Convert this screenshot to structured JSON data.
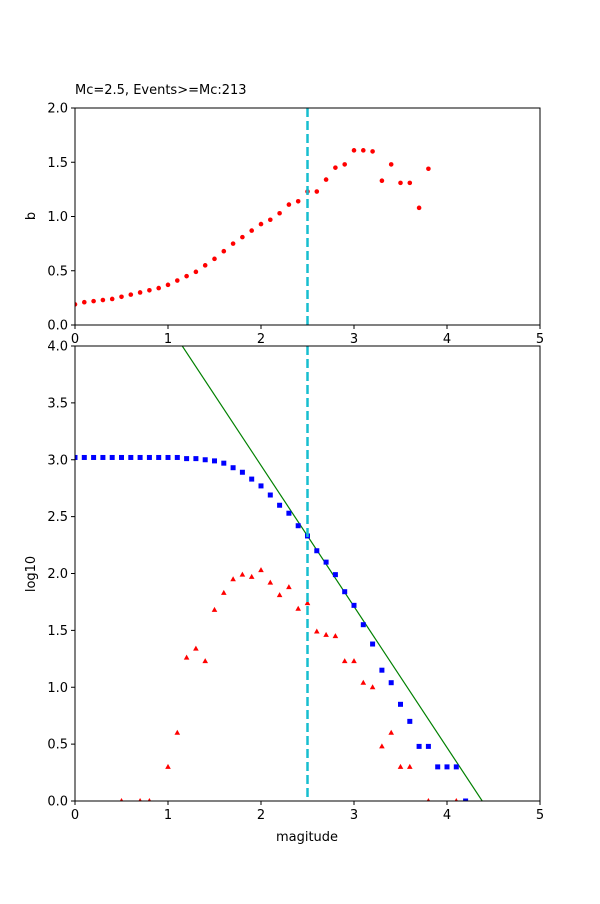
{
  "chart_data": [
    {
      "type": "scatter",
      "title": "Mc=2.5, Events>=Mc:213",
      "xlabel": "",
      "ylabel": "b",
      "xlim": [
        0,
        5
      ],
      "ylim": [
        0,
        2.0
      ],
      "xticks": [
        "0",
        "1",
        "2",
        "3",
        "4",
        "5"
      ],
      "yticks": [
        "0.0",
        "0.5",
        "1.0",
        "1.5",
        "2.0"
      ],
      "grid": false,
      "mc_line": {
        "x": 2.5,
        "color": "#17becf",
        "style": "dashed"
      },
      "series": [
        {
          "marker": "circle",
          "color": "#ff0000",
          "x": [
            0,
            0.1,
            0.2,
            0.3,
            0.4,
            0.5,
            0.6,
            0.7,
            0.8,
            0.9,
            1.0,
            1.1,
            1.2,
            1.3,
            1.4,
            1.5,
            1.6,
            1.7,
            1.8,
            1.9,
            2.0,
            2.1,
            2.2,
            2.3,
            2.4,
            2.5,
            2.6,
            2.7,
            2.8,
            2.9,
            3.0,
            3.1,
            3.2,
            3.3,
            3.4,
            3.5,
            3.6,
            3.7,
            3.8
          ],
          "y": [
            0.19,
            0.21,
            0.22,
            0.23,
            0.24,
            0.26,
            0.28,
            0.3,
            0.32,
            0.34,
            0.37,
            0.41,
            0.45,
            0.49,
            0.55,
            0.61,
            0.68,
            0.75,
            0.81,
            0.87,
            0.93,
            0.97,
            1.03,
            1.11,
            1.14,
            1.23,
            1.23,
            1.34,
            1.45,
            1.48,
            1.61,
            1.61,
            1.6,
            1.33,
            1.48,
            1.31,
            1.31,
            1.08,
            1.44
          ]
        }
      ]
    },
    {
      "type": "scatter",
      "title": "",
      "xlabel": "magitude",
      "ylabel": "log10",
      "xlim": [
        0,
        5
      ],
      "ylim": [
        0,
        4.0
      ],
      "xticks": [
        "0",
        "1",
        "2",
        "3",
        "4",
        "5"
      ],
      "yticks": [
        "0.0",
        "0.5",
        "1.0",
        "1.5",
        "2.0",
        "2.5",
        "3.0",
        "3.5",
        "4.0"
      ],
      "grid": false,
      "mc_line": {
        "x": 2.5,
        "color": "#17becf",
        "style": "dashed"
      },
      "fit_line": {
        "intercept": 5.43,
        "slope": -1.24,
        "color": "#008000"
      },
      "series": [
        {
          "marker": "square",
          "color": "#0000ff",
          "x": [
            0,
            0.1,
            0.2,
            0.3,
            0.4,
            0.5,
            0.6,
            0.7,
            0.8,
            0.9,
            1.0,
            1.1,
            1.2,
            1.3,
            1.4,
            1.5,
            1.6,
            1.7,
            1.8,
            1.9,
            2.0,
            2.1,
            2.2,
            2.3,
            2.4,
            2.5,
            2.6,
            2.7,
            2.8,
            2.9,
            3.0,
            3.1,
            3.2,
            3.3,
            3.4,
            3.5,
            3.6,
            3.7,
            3.8,
            3.9,
            4.0,
            4.1,
            4.2
          ],
          "y": [
            3.02,
            3.02,
            3.02,
            3.02,
            3.02,
            3.02,
            3.02,
            3.02,
            3.02,
            3.02,
            3.02,
            3.02,
            3.01,
            3.01,
            3.0,
            2.99,
            2.97,
            2.93,
            2.89,
            2.83,
            2.77,
            2.69,
            2.6,
            2.53,
            2.42,
            2.33,
            2.2,
            2.1,
            1.99,
            1.84,
            1.72,
            1.55,
            1.38,
            1.15,
            1.04,
            0.85,
            0.7,
            0.48,
            0.48,
            0.3,
            0.3,
            0.3,
            0.0
          ]
        },
        {
          "marker": "triangle",
          "color": "#ff0000",
          "x": [
            0.5,
            0.7,
            0.8,
            1.0,
            1.1,
            1.2,
            1.3,
            1.4,
            1.5,
            1.6,
            1.7,
            1.8,
            1.9,
            2.0,
            2.1,
            2.2,
            2.3,
            2.4,
            2.5,
            2.6,
            2.7,
            2.8,
            2.9,
            3.0,
            3.1,
            3.2,
            3.3,
            3.4,
            3.5,
            3.6,
            3.8,
            4.1
          ],
          "y": [
            0,
            0,
            0,
            0.3,
            0.6,
            1.26,
            1.34,
            1.23,
            1.68,
            1.83,
            1.95,
            1.99,
            1.97,
            2.03,
            1.92,
            1.81,
            1.88,
            1.69,
            1.74,
            1.49,
            1.46,
            1.45,
            1.23,
            1.23,
            1.04,
            1.0,
            0.48,
            0.6,
            0.3,
            0.3,
            0,
            0
          ]
        }
      ]
    }
  ]
}
